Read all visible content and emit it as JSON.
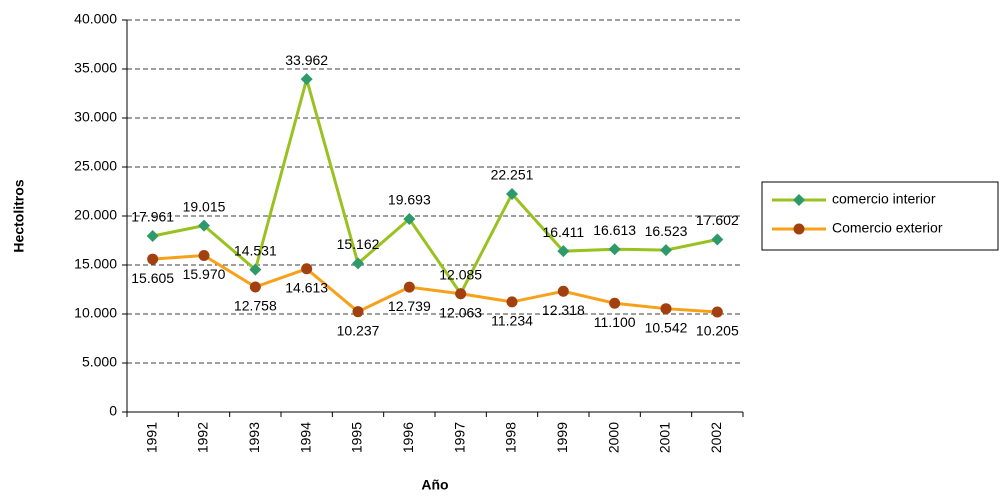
{
  "chart_data": {
    "type": "line",
    "xlabel": "Año",
    "ylabel": "Hectolitros",
    "categories": [
      "1991",
      "1992",
      "1993",
      "1994",
      "1995",
      "1996",
      "1997",
      "1998",
      "1999",
      "2000",
      "2001",
      "2002"
    ],
    "series": [
      {
        "name": "comercio interior",
        "color": "#99c221",
        "marker_color": "#2e9a6a",
        "marker": "diamond",
        "values": [
          17961,
          19015,
          14531,
          33962,
          15162,
          19693,
          12085,
          22251,
          16411,
          16613,
          16523,
          17602
        ],
        "value_labels": [
          "17.961",
          "19.015",
          "14.531",
          "33.962",
          "15.162",
          "19.693",
          "12.085",
          "22.251",
          "16.411",
          "16.613",
          "16.523",
          "17.602"
        ]
      },
      {
        "name": "Comercio exterior",
        "color": "#f7a11a",
        "marker_color": "#a3400f",
        "marker": "circle",
        "values": [
          15605,
          15970,
          12758,
          14613,
          10237,
          12739,
          12063,
          11234,
          12318,
          11100,
          10542,
          10205
        ],
        "value_labels": [
          "15.605",
          "15.970",
          "12.758",
          "14.613",
          "10.237",
          "12.739",
          "12.063",
          "11.234",
          "12.318",
          "11.100",
          "10.542",
          "10.205"
        ]
      }
    ],
    "ylim": [
      0,
      40000
    ],
    "yticks": [
      0,
      {
        "value": 5000,
        "label": "5.000"
      },
      {
        "value": 10000,
        "label": "10.000"
      },
      {
        "value": 15000,
        "label": "15.000"
      },
      {
        "value": 20000,
        "label": "20.000"
      },
      {
        "value": 25000,
        "label": "25.000"
      },
      {
        "value": 30000,
        "label": "30.000"
      },
      {
        "value": 35000,
        "label": "35.000"
      },
      {
        "value": 40000,
        "label": "40.000"
      }
    ],
    "grid": true,
    "legend": "right"
  }
}
